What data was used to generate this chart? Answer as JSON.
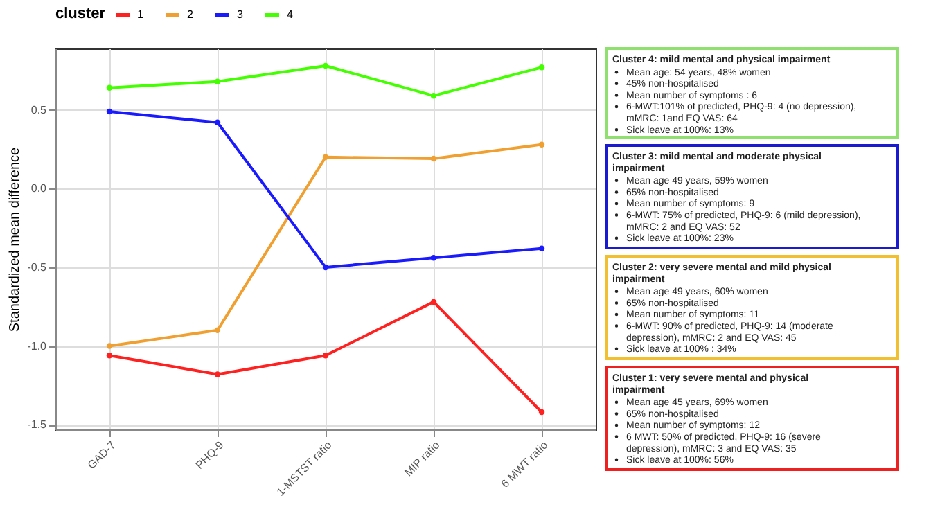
{
  "chart_data": [
    {
      "type": "line",
      "ylabel": "Standardized mean difference",
      "legend_title": "cluster",
      "legend": "top",
      "marker": "circle",
      "grid": true,
      "line_style": "solid",
      "categories": [
        "GAD-7",
        "PHQ-9",
        "1-MSTST ratio",
        "MIP ratio",
        "6 MWT ratio"
      ],
      "ylim": [
        -1.53,
        0.89
      ],
      "yticks": [
        -1.5,
        {
          "value": -1,
          "label": "-1.0"
        },
        -0.5,
        {
          "value": 0,
          "label": "0.0"
        },
        0.5
      ],
      "series": [
        {
          "name": "1",
          "color": "#ff2020",
          "values": [
            -1.06,
            -1.18,
            -1.06,
            -0.72,
            -1.42
          ]
        },
        {
          "name": "2",
          "color": "#f0a030",
          "values": [
            -1.0,
            -0.9,
            0.2,
            0.19,
            0.28
          ]
        },
        {
          "name": "3",
          "color": "#1a1aff",
          "values": [
            0.49,
            0.42,
            -0.5,
            -0.44,
            -0.38
          ]
        },
        {
          "name": "4",
          "color": "#44ff00",
          "values": [
            0.64,
            0.68,
            0.78,
            0.59,
            0.77
          ]
        }
      ]
    },
    {
      "type": "other",
      "color": "#90e070",
      "title": "Cluster 4: mild mental and physical impairment",
      "annotations": [
        "Mean age: 54 years, 48% women",
        "45% non-hospitalised",
        "Mean number of symptoms : 6",
        "6-MWT:101% of predicted, PHQ-9: 4 (no depression), mMRC: 1and EQ VAS: 64",
        "Sick leave at 100%: 13%"
      ]
    },
    {
      "type": "other",
      "color": "#1a1ad0",
      "title": "Cluster 3: mild mental and moderate physical impairment",
      "annotations": [
        "Mean age 49 years, 59% women",
        "65% non-hospitalised",
        "Mean number of symptoms: 9",
        "6-MWT: 75% of predicted, PHQ-9: 6 (mild depression), mMRC: 2 and EQ VAS: 52",
        "Sick leave at 100%: 23%"
      ]
    },
    {
      "type": "other",
      "color": "#f0c030",
      "title": "Cluster 2: very severe mental and mild physical impairment",
      "annotations": [
        "Mean age 49 years, 60% women",
        "65% non-hospitalised",
        "Mean number of symptoms: 11",
        "6-MWT: 90% of predicted,  PHQ-9: 14 (moderate depression), mMRC: 2 and EQ VAS: 45",
        "Sick leave at 100% : 34%"
      ]
    },
    {
      "type": "other",
      "color": "#ee2020",
      "title": "Cluster 1: very severe mental and physical impairment",
      "annotations": [
        "Mean age 45 years, 69% women",
        "65% non-hospitalised",
        "Mean number of symptoms: 12",
        "6 MWT: 50% of predicted, PHQ-9: 16 (severe depression), mMRC: 3 and EQ VAS: 35",
        "Sick leave at 100%: 56%"
      ]
    }
  ]
}
